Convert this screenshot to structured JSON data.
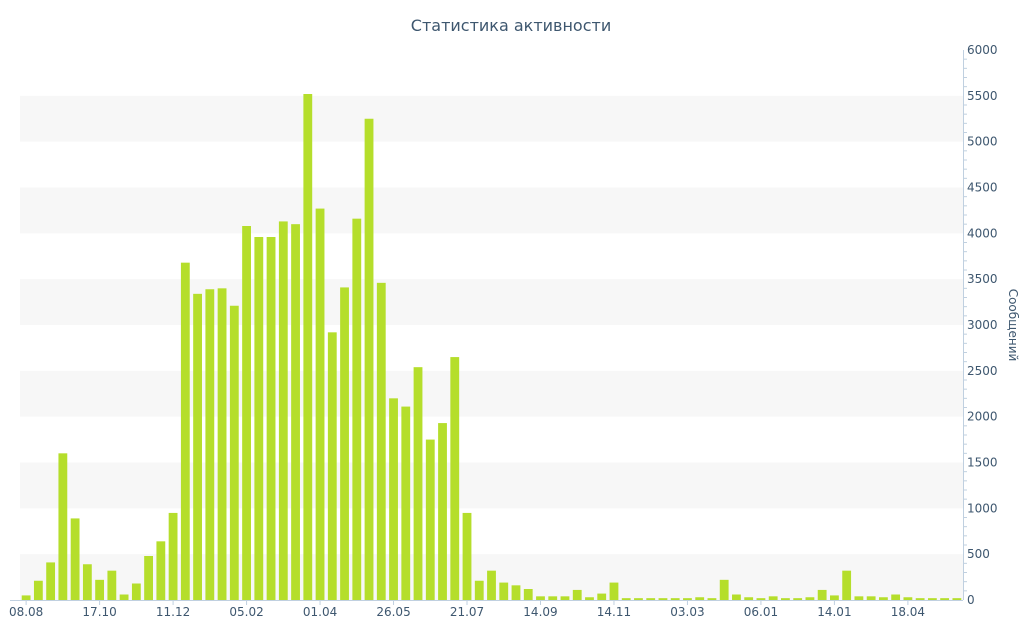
{
  "chart_data": {
    "type": "bar",
    "title": "Статистика активности",
    "ylabel": "Сообщений",
    "ylim": [
      0,
      6000
    ],
    "y_ticks": [
      0,
      500,
      1000,
      1500,
      2000,
      2500,
      3000,
      3500,
      4000,
      4500,
      5000,
      5500,
      6000
    ],
    "y_axis_side": "right",
    "grid": "alternating horizontal bands",
    "x_tick_labels": [
      {
        "index": 0,
        "label": "08.08"
      },
      {
        "index": 6,
        "label": "17.10"
      },
      {
        "index": 12,
        "label": "11.12"
      },
      {
        "index": 18,
        "label": "05.02"
      },
      {
        "index": 24,
        "label": "01.04"
      },
      {
        "index": 30,
        "label": "26.05"
      },
      {
        "index": 36,
        "label": "21.07"
      },
      {
        "index": 42,
        "label": "14.09"
      },
      {
        "index": 48,
        "label": "14.11"
      },
      {
        "index": 54,
        "label": "03.03"
      },
      {
        "index": 60,
        "label": "06.01"
      },
      {
        "index": 66,
        "label": "14.01"
      },
      {
        "index": 72,
        "label": "18.04"
      }
    ],
    "series": [
      {
        "color": "#b5de2b",
        "values": [
          50,
          210,
          410,
          1600,
          890,
          390,
          220,
          320,
          60,
          180,
          480,
          640,
          950,
          3680,
          3340,
          3390,
          3400,
          3210,
          4080,
          3960,
          3960,
          4130,
          4100,
          5520,
          4270,
          2920,
          3410,
          4160,
          5250,
          3460,
          2200,
          2110,
          2540,
          1750,
          1930,
          2650,
          950,
          210,
          320,
          190,
          160,
          120,
          40,
          40,
          40,
          110,
          30,
          70,
          190,
          20,
          20,
          20,
          20,
          20,
          20,
          30,
          20,
          220,
          60,
          30,
          20,
          40,
          20,
          20,
          30,
          110,
          50,
          320,
          40,
          40,
          30,
          60,
          30,
          20,
          20,
          20,
          20
        ]
      }
    ]
  }
}
